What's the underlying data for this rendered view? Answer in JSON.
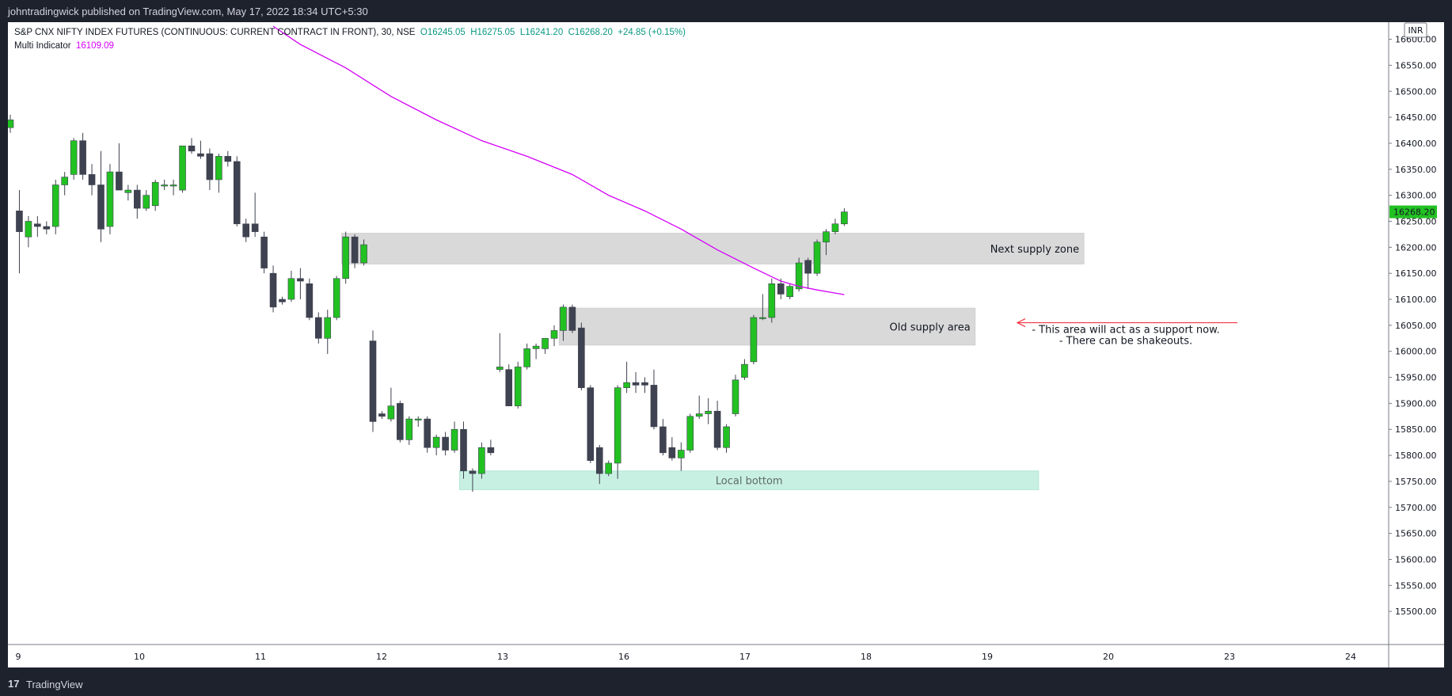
{
  "header": {
    "publish_line": "johntradingwick published on TradingView.com, May 17, 2022 18:34 UTC+5:30"
  },
  "legend": {
    "symbol": "S&P CNX NIFTY INDEX FUTURES (CONTINUOUS: CURRENT CONTRACT IN FRONT), 30, NSE",
    "open": "O16245.05",
    "high": "H16275.05",
    "low": "L16241.20",
    "close": "C16268.20",
    "change": "+24.85 (+0.15%)",
    "indicator_name": "Multi Indicator",
    "indicator_value": "16109.09"
  },
  "footer": {
    "logo": "17",
    "brand": "TradingView"
  },
  "colors": {
    "up": "#22c122",
    "down": "#3f4250",
    "indicator": "#d500f9",
    "zone": "#d9d9d9",
    "bottom_zone": "#c8f0e2",
    "arrow": "#f23645",
    "price_tag": "#22c122"
  },
  "chart_data": {
    "type": "candlestick",
    "currency": "INR",
    "last_price_label": "16268.20",
    "ylim": [
      15450,
      16610
    ],
    "y_ticks": [
      "16600.00",
      "16550.00",
      "16500.00",
      "16450.00",
      "16400.00",
      "16350.00",
      "16300.00",
      "16250.00",
      "16200.00",
      "16150.00",
      "16100.00",
      "16050.00",
      "16000.00",
      "15950.00",
      "15900.00",
      "15850.00",
      "15800.00",
      "15750.00",
      "15700.00",
      "15650.00",
      "15600.00",
      "15550.00",
      "15500.00"
    ],
    "x_ticks": [
      "9",
      "10",
      "11",
      "12",
      "13",
      "16",
      "17",
      "18",
      "19",
      "20",
      "23",
      "24"
    ],
    "candles": [
      {
        "o": 16430,
        "h": 16455,
        "l": 16420,
        "c": 16445
      },
      {
        "o": 16270,
        "h": 16310,
        "l": 16150,
        "c": 16230
      },
      {
        "o": 16220,
        "h": 16260,
        "l": 16200,
        "c": 16250
      },
      {
        "o": 16245,
        "h": 16260,
        "l": 16220,
        "c": 16240
      },
      {
        "o": 16240,
        "h": 16250,
        "l": 16225,
        "c": 16235
      },
      {
        "o": 16240,
        "h": 16330,
        "l": 16225,
        "c": 16320
      },
      {
        "o": 16320,
        "h": 16345,
        "l": 16300,
        "c": 16335
      },
      {
        "o": 16340,
        "h": 16410,
        "l": 16330,
        "c": 16405
      },
      {
        "o": 16405,
        "h": 16420,
        "l": 16330,
        "c": 16340
      },
      {
        "o": 16340,
        "h": 16360,
        "l": 16300,
        "c": 16320
      },
      {
        "o": 16320,
        "h": 16385,
        "l": 16210,
        "c": 16235
      },
      {
        "o": 16240,
        "h": 16360,
        "l": 16225,
        "c": 16345
      },
      {
        "o": 16345,
        "h": 16400,
        "l": 16310,
        "c": 16310
      },
      {
        "o": 16305,
        "h": 16320,
        "l": 16290,
        "c": 16310
      },
      {
        "o": 16310,
        "h": 16320,
        "l": 16255,
        "c": 16275
      },
      {
        "o": 16275,
        "h": 16310,
        "l": 16270,
        "c": 16300
      },
      {
        "o": 16280,
        "h": 16330,
        "l": 16270,
        "c": 16325
      },
      {
        "o": 16320,
        "h": 16330,
        "l": 16310,
        "c": 16320
      },
      {
        "o": 16320,
        "h": 16330,
        "l": 16300,
        "c": 16320
      },
      {
        "o": 16310,
        "h": 16395,
        "l": 16305,
        "c": 16395
      },
      {
        "o": 16395,
        "h": 16410,
        "l": 16380,
        "c": 16385
      },
      {
        "o": 16380,
        "h": 16405,
        "l": 16370,
        "c": 16375
      },
      {
        "o": 16380,
        "h": 16390,
        "l": 16310,
        "c": 16330
      },
      {
        "o": 16330,
        "h": 16380,
        "l": 16305,
        "c": 16375
      },
      {
        "o": 16375,
        "h": 16385,
        "l": 16355,
        "c": 16365
      },
      {
        "o": 16365,
        "h": 16375,
        "l": 16240,
        "c": 16245
      },
      {
        "o": 16245,
        "h": 16255,
        "l": 16210,
        "c": 16220
      },
      {
        "o": 16245,
        "h": 16305,
        "l": 16220,
        "c": 16230
      },
      {
        "o": 16220,
        "h": 16230,
        "l": 16150,
        "c": 16160
      },
      {
        "o": 16150,
        "h": 16165,
        "l": 16075,
        "c": 16085
      },
      {
        "o": 16100,
        "h": 16105,
        "l": 16090,
        "c": 16095
      },
      {
        "o": 16100,
        "h": 16155,
        "l": 16095,
        "c": 16140
      },
      {
        "o": 16140,
        "h": 16160,
        "l": 16100,
        "c": 16135
      },
      {
        "o": 16130,
        "h": 16140,
        "l": 16060,
        "c": 16065
      },
      {
        "o": 16065,
        "h": 16075,
        "l": 16015,
        "c": 16025
      },
      {
        "o": 16025,
        "h": 16080,
        "l": 15995,
        "c": 16065
      },
      {
        "o": 16065,
        "h": 16145,
        "l": 16060,
        "c": 16140
      },
      {
        "o": 16140,
        "h": 16230,
        "l": 16130,
        "c": 16220
      },
      {
        "o": 16220,
        "h": 16225,
        "l": 16160,
        "c": 16170
      },
      {
        "o": 16170,
        "h": 16215,
        "l": 16165,
        "c": 16205
      },
      {
        "o": 16020,
        "h": 16040,
        "l": 15845,
        "c": 15865
      },
      {
        "o": 15880,
        "h": 15885,
        "l": 15870,
        "c": 15875
      },
      {
        "o": 15870,
        "h": 15930,
        "l": 15865,
        "c": 15895
      },
      {
        "o": 15900,
        "h": 15905,
        "l": 15825,
        "c": 15830
      },
      {
        "o": 15830,
        "h": 15875,
        "l": 15820,
        "c": 15870
      },
      {
        "o": 15870,
        "h": 15875,
        "l": 15855,
        "c": 15870
      },
      {
        "o": 15870,
        "h": 15875,
        "l": 15805,
        "c": 15815
      },
      {
        "o": 15815,
        "h": 15840,
        "l": 15800,
        "c": 15835
      },
      {
        "o": 15835,
        "h": 15845,
        "l": 15800,
        "c": 15810
      },
      {
        "o": 15810,
        "h": 15865,
        "l": 15805,
        "c": 15850
      },
      {
        "o": 15850,
        "h": 15865,
        "l": 15755,
        "c": 15770
      },
      {
        "o": 15770,
        "h": 15775,
        "l": 15730,
        "c": 15765
      },
      {
        "o": 15765,
        "h": 15825,
        "l": 15755,
        "c": 15815
      },
      {
        "o": 15815,
        "h": 15830,
        "l": 15800,
        "c": 15805
      },
      {
        "o": 15965,
        "h": 16035,
        "l": 15960,
        "c": 15970
      },
      {
        "o": 15965,
        "h": 15975,
        "l": 15895,
        "c": 15895
      },
      {
        "o": 15895,
        "h": 15980,
        "l": 15890,
        "c": 15970
      },
      {
        "o": 15970,
        "h": 16015,
        "l": 15965,
        "c": 16005
      },
      {
        "o": 16005,
        "h": 16015,
        "l": 15985,
        "c": 16010
      },
      {
        "o": 16005,
        "h": 16020,
        "l": 15995,
        "c": 16025
      },
      {
        "o": 16025,
        "h": 16050,
        "l": 16010,
        "c": 16040
      },
      {
        "o": 16040,
        "h": 16090,
        "l": 16020,
        "c": 16085
      },
      {
        "o": 16085,
        "h": 16090,
        "l": 16035,
        "c": 16040
      },
      {
        "o": 16045,
        "h": 16055,
        "l": 15925,
        "c": 15930
      },
      {
        "o": 15930,
        "h": 15935,
        "l": 15785,
        "c": 15790
      },
      {
        "o": 15815,
        "h": 15820,
        "l": 15745,
        "c": 15765
      },
      {
        "o": 15765,
        "h": 15790,
        "l": 15760,
        "c": 15785
      },
      {
        "o": 15785,
        "h": 15935,
        "l": 15755,
        "c": 15930
      },
      {
        "o": 15930,
        "h": 15980,
        "l": 15920,
        "c": 15940
      },
      {
        "o": 15940,
        "h": 15960,
        "l": 15920,
        "c": 15935
      },
      {
        "o": 15940,
        "h": 15950,
        "l": 15920,
        "c": 15935
      },
      {
        "o": 15935,
        "h": 15965,
        "l": 15850,
        "c": 15855
      },
      {
        "o": 15855,
        "h": 15870,
        "l": 15800,
        "c": 15805
      },
      {
        "o": 15815,
        "h": 15835,
        "l": 15790,
        "c": 15795
      },
      {
        "o": 15795,
        "h": 15825,
        "l": 15770,
        "c": 15810
      },
      {
        "o": 15810,
        "h": 15880,
        "l": 15805,
        "c": 15875
      },
      {
        "o": 15875,
        "h": 15915,
        "l": 15870,
        "c": 15880
      },
      {
        "o": 15880,
        "h": 15910,
        "l": 15860,
        "c": 15885
      },
      {
        "o": 15885,
        "h": 15905,
        "l": 15810,
        "c": 15815
      },
      {
        "o": 15815,
        "h": 15860,
        "l": 15805,
        "c": 15855
      },
      {
        "o": 15880,
        "h": 15955,
        "l": 15875,
        "c": 15945
      },
      {
        "o": 15950,
        "h": 15985,
        "l": 15945,
        "c": 15975
      },
      {
        "o": 15980,
        "h": 16070,
        "l": 15975,
        "c": 16065
      },
      {
        "o": 16065,
        "h": 16110,
        "l": 16060,
        "c": 16065
      },
      {
        "o": 16065,
        "h": 16140,
        "l": 16055,
        "c": 16130
      },
      {
        "o": 16130,
        "h": 16140,
        "l": 16100,
        "c": 16110
      },
      {
        "o": 16105,
        "h": 16130,
        "l": 16100,
        "c": 16125
      },
      {
        "o": 16120,
        "h": 16180,
        "l": 16115,
        "c": 16170
      },
      {
        "o": 16175,
        "h": 16180,
        "l": 16120,
        "c": 16150
      },
      {
        "o": 16150,
        "h": 16215,
        "l": 16145,
        "c": 16210
      },
      {
        "o": 16210,
        "h": 16235,
        "l": 16185,
        "c": 16230
      },
      {
        "o": 16230,
        "h": 16255,
        "l": 16225,
        "c": 16245
      },
      {
        "o": 16245,
        "h": 16275,
        "l": 16241,
        "c": 16268
      }
    ],
    "indicator_series": {
      "name": "Multi Indicator",
      "points": [
        [
          29,
          16625
        ],
        [
          32,
          16590
        ],
        [
          37,
          16545
        ],
        [
          42,
          16490
        ],
        [
          47,
          16445
        ],
        [
          52,
          16405
        ],
        [
          57,
          16375
        ],
        [
          62,
          16340
        ],
        [
          66,
          16300
        ],
        [
          70,
          16270
        ],
        [
          74,
          16235
        ],
        [
          78,
          16195
        ],
        [
          82,
          16160
        ],
        [
          85,
          16135
        ],
        [
          87,
          16125
        ],
        [
          89,
          16118
        ],
        [
          91,
          16112
        ],
        [
          92,
          16109
        ]
      ]
    },
    "zones": [
      {
        "label": "Next supply zone",
        "x0": 37,
        "x1": 118,
        "y0": 16168,
        "y1": 16227
      },
      {
        "label": "Old supply area",
        "x0": 61,
        "x1": 106,
        "y0": 16012,
        "y1": 16083
      },
      {
        "label": "Local bottom",
        "x0": 50,
        "x1": 113,
        "y0": 15734,
        "y1": 15770
      }
    ],
    "annotations": [
      "- This area will act as a support now.",
      "- There can be shakeouts."
    ]
  }
}
